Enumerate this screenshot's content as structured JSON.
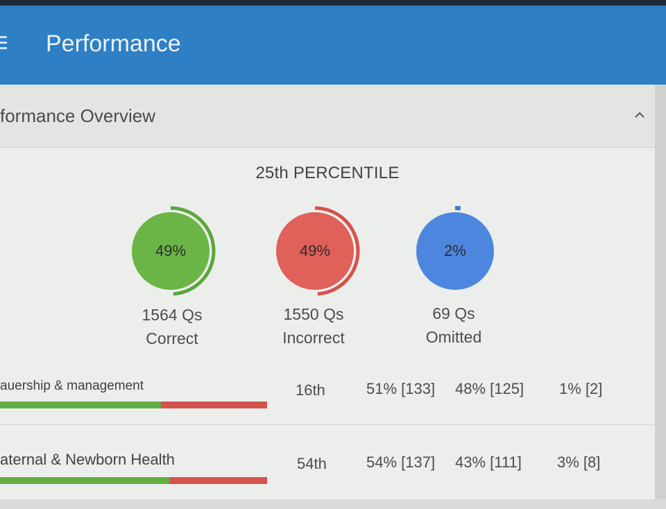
{
  "app": {
    "title": "Performance"
  },
  "overview": {
    "header": "formance Overview",
    "percentile": "25th PERCENTILE",
    "stats": [
      {
        "pct": "49%",
        "count": "1564 Qs",
        "label": "Correct",
        "fraction": 0.49,
        "color": "#6ab546",
        "ring": "#5aa63a"
      },
      {
        "pct": "49%",
        "count": "1550 Qs",
        "label": "Incorrect",
        "fraction": 0.49,
        "color": "#e0605a",
        "ring": "#d6514b"
      },
      {
        "pct": "2%",
        "count": "69 Qs",
        "label": "Omitted",
        "fraction": 0.02,
        "color": "#4d86df",
        "ring": "#3f77d2"
      }
    ]
  },
  "rows": [
    {
      "name": "auership & management",
      "percentile": "16th",
      "correct": "51% [133]",
      "incorrect": "48% [125]",
      "omitted": "1% [2]",
      "correct_fraction": 0.51
    },
    {
      "name": "aternal & Newborn Health",
      "percentile": "54th",
      "correct": "54% [137]",
      "incorrect": "43% [111]",
      "omitted": "3% [8]",
      "correct_fraction": 0.54
    }
  ]
}
